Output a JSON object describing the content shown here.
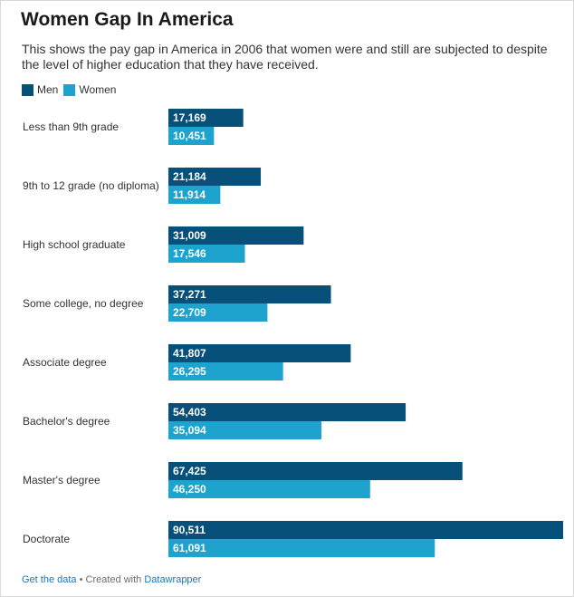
{
  "header": {
    "title": "Women Gap In America",
    "subtitle": "This shows the pay gap in America in 2006 that women were and still are subjected to despite the level of higher education that they have received."
  },
  "colors": {
    "men": "#07507a",
    "women": "#1ea3cf"
  },
  "footer": {
    "get_data": "Get the data",
    "separator": "•",
    "created_with": "Created with",
    "tool": "Datawrapper"
  },
  "chart_data": {
    "type": "bar",
    "orientation": "horizontal",
    "categories": [
      "Less than 9th grade",
      "9th to 12 grade (no diploma)",
      "High school graduate",
      "Some college, no degree",
      "Associate degree",
      "Bachelor's degree",
      "Master's degree",
      "Doctorate"
    ],
    "series": [
      {
        "name": "Men",
        "values": [
          17169,
          21184,
          31009,
          37271,
          41807,
          54403,
          67425,
          90511
        ],
        "labels": [
          "17,169",
          "21,184",
          "31,009",
          "37,271",
          "41,807",
          "54,403",
          "67,425",
          "90,511"
        ]
      },
      {
        "name": "Women",
        "values": [
          10451,
          11914,
          17546,
          22709,
          26295,
          35094,
          46250,
          61091
        ],
        "labels": [
          "10,451",
          "11,914",
          "17,546",
          "22,709",
          "26,295",
          "35,094",
          "46,250",
          "61,091"
        ]
      }
    ],
    "xlim": [
      0,
      90511
    ],
    "grid": false,
    "legend": "top-left"
  }
}
